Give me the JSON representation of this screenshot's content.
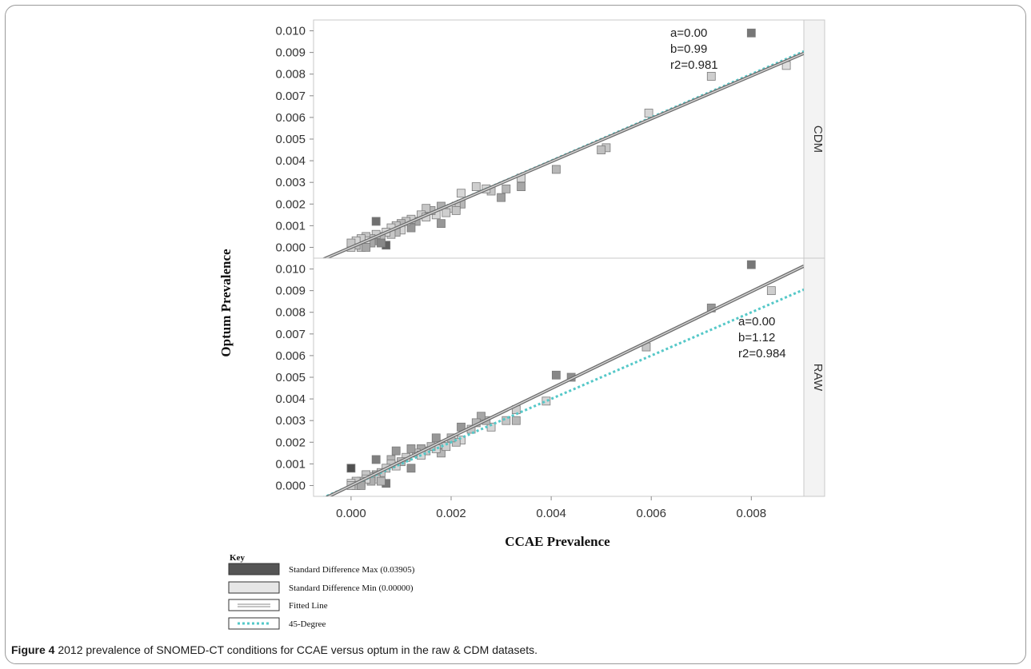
{
  "figure": {
    "caption_label": "Figure 4",
    "caption_text": "2012 prevalence of SNOMED-CT conditions for CCAE versus optum in the raw & CDM datasets."
  },
  "key": {
    "title": "Key",
    "items": [
      {
        "label": "Standard Difference Max (0.03905)",
        "symbol": "max-fill",
        "color": "#555555"
      },
      {
        "label": "Standard Difference Min (0.00000)",
        "symbol": "min-fill",
        "color": "#e6e6e6"
      },
      {
        "label": "Fitted Line",
        "symbol": "double-line",
        "color": "#888888"
      },
      {
        "label": "45-Degree",
        "symbol": "dotted-line",
        "color": "#55c8c8"
      }
    ]
  },
  "chart_data": {
    "type": "scatter",
    "xlabel": "CCAE Prevalence",
    "ylabel": "Optum Prevalence",
    "xlim": [
      -0.00075,
      0.00905
    ],
    "xticks": [
      "0.000",
      "0.002",
      "0.004",
      "0.006",
      "0.008"
    ],
    "xtick_values": [
      0,
      0.002,
      0.004,
      0.006,
      0.008
    ],
    "colors": {
      "fitted": "#6e6e6e",
      "degree45": "#55c8c8",
      "max": "#555555",
      "min": "#e6e6e6"
    },
    "panels": [
      {
        "name": "CDM",
        "ylim": [
          -0.0005,
          0.0105
        ],
        "yticks": [
          "0.000",
          "0.001",
          "0.002",
          "0.003",
          "0.004",
          "0.005",
          "0.006",
          "0.007",
          "0.008",
          "0.009",
          "0.010"
        ],
        "ytick_values": [
          0,
          0.001,
          0.002,
          0.003,
          0.004,
          0.005,
          0.006,
          0.007,
          0.008,
          0.009,
          0.01
        ],
        "annotation": [
          "a=0.00",
          "b=0.99",
          "r2=0.981"
        ],
        "fit": {
          "a": 0.0,
          "b": 0.99
        },
        "points": [
          [
            0.008,
            0.0099,
            0.7
          ],
          [
            0.0087,
            0.0084,
            0.05
          ],
          [
            0.0072,
            0.0079,
            0.15
          ],
          [
            0.00595,
            0.0062,
            0.1
          ],
          [
            0.0051,
            0.0046,
            0.2
          ],
          [
            0.005,
            0.0045,
            0.25
          ],
          [
            0.0041,
            0.0036,
            0.3
          ],
          [
            0.0034,
            0.0028,
            0.4
          ],
          [
            0.0034,
            0.0032,
            0.1
          ],
          [
            0.0031,
            0.0027,
            0.3
          ],
          [
            0.003,
            0.0023,
            0.45
          ],
          [
            0.0028,
            0.0026,
            0.2
          ],
          [
            0.0027,
            0.0027,
            0.1
          ],
          [
            0.0025,
            0.0028,
            0.15
          ],
          [
            0.0022,
            0.0025,
            0.1
          ],
          [
            0.0022,
            0.002,
            0.3
          ],
          [
            0.0021,
            0.0019,
            0.2
          ],
          [
            0.002,
            0.0018,
            0.1
          ],
          [
            0.0018,
            0.0011,
            0.5
          ],
          [
            0.0018,
            0.0019,
            0.35
          ],
          [
            0.0019,
            0.0016,
            0.15
          ],
          [
            0.0017,
            0.0015,
            0.1
          ],
          [
            0.0016,
            0.0017,
            0.3
          ],
          [
            0.0015,
            0.0018,
            0.2
          ],
          [
            0.0014,
            0.0015,
            0.15
          ],
          [
            0.0013,
            0.0012,
            0.4
          ],
          [
            0.0012,
            0.0009,
            0.5
          ],
          [
            0.0012,
            0.0013,
            0.15
          ],
          [
            0.0011,
            0.0012,
            0.2
          ],
          [
            0.001,
            0.0011,
            0.3
          ],
          [
            0.001,
            0.0008,
            0.1
          ],
          [
            0.0009,
            0.001,
            0.2
          ],
          [
            0.0009,
            0.0007,
            0.3
          ],
          [
            0.0008,
            0.0009,
            0.1
          ],
          [
            0.0008,
            0.0006,
            0.2
          ],
          [
            0.0007,
            0.0001,
            0.85
          ],
          [
            0.0007,
            0.0007,
            0.1
          ],
          [
            0.0006,
            0.0005,
            0.3
          ],
          [
            0.0005,
            0.0012,
            0.75
          ],
          [
            0.0005,
            0.0003,
            0.5
          ],
          [
            0.0005,
            0.0006,
            0.15
          ],
          [
            0.0004,
            0.0004,
            0.25
          ],
          [
            0.0004,
            0.0002,
            0.4
          ],
          [
            0.0003,
            0.0005,
            0.2
          ],
          [
            0.0003,
            0.0003,
            0.1
          ],
          [
            0.0002,
            0.0002,
            0.3
          ],
          [
            0.0002,
            0.0004,
            0.15
          ],
          [
            0.0002,
            0.0,
            0.2
          ],
          [
            0.0001,
            0.0001,
            0.25
          ],
          [
            0.0001,
            0.0003,
            0.1
          ],
          [
            0.0,
            0.0,
            0.15
          ],
          [
            0.0,
            0.0002,
            0.2
          ],
          [
            0.0006,
            0.0002,
            0.6
          ],
          [
            0.0003,
            0.0,
            0.4
          ],
          [
            0.0015,
            0.0014,
            0.1
          ],
          [
            0.0021,
            0.0017,
            0.2
          ]
        ]
      },
      {
        "name": "RAW",
        "ylim": [
          -0.0005,
          0.0105
        ],
        "yticks": [
          "0.000",
          "0.001",
          "0.002",
          "0.003",
          "0.004",
          "0.005",
          "0.006",
          "0.007",
          "0.008",
          "0.009",
          "0.010"
        ],
        "ytick_values": [
          0,
          0.001,
          0.002,
          0.003,
          0.004,
          0.005,
          0.006,
          0.007,
          0.008,
          0.009,
          0.01
        ],
        "annotation": [
          "a=0.00",
          "b=1.12",
          "r2=0.984"
        ],
        "fit": {
          "a": 0.0,
          "b": 1.12
        },
        "points": [
          [
            0.008,
            0.0102,
            0.7
          ],
          [
            0.0084,
            0.009,
            0.15
          ],
          [
            0.0072,
            0.0082,
            0.5
          ],
          [
            0.0059,
            0.0064,
            0.2
          ],
          [
            0.0044,
            0.005,
            0.55
          ],
          [
            0.0041,
            0.0051,
            0.6
          ],
          [
            0.0039,
            0.0039,
            0.1
          ],
          [
            0.0033,
            0.0035,
            0.15
          ],
          [
            0.0033,
            0.003,
            0.3
          ],
          [
            0.0031,
            0.003,
            0.2
          ],
          [
            0.0028,
            0.0027,
            0.1
          ],
          [
            0.0027,
            0.003,
            0.3
          ],
          [
            0.0026,
            0.0032,
            0.4
          ],
          [
            0.0025,
            0.0029,
            0.3
          ],
          [
            0.0024,
            0.0026,
            0.2
          ],
          [
            0.0022,
            0.0027,
            0.5
          ],
          [
            0.0022,
            0.0021,
            0.1
          ],
          [
            0.0021,
            0.002,
            0.2
          ],
          [
            0.002,
            0.0022,
            0.3
          ],
          [
            0.0018,
            0.0015,
            0.3
          ],
          [
            0.0018,
            0.0019,
            0.2
          ],
          [
            0.0017,
            0.0022,
            0.5
          ],
          [
            0.0017,
            0.0017,
            0.1
          ],
          [
            0.0016,
            0.0018,
            0.25
          ],
          [
            0.0015,
            0.0016,
            0.2
          ],
          [
            0.0014,
            0.0017,
            0.4
          ],
          [
            0.0013,
            0.0015,
            0.2
          ],
          [
            0.0012,
            0.0017,
            0.45
          ],
          [
            0.0012,
            0.0008,
            0.55
          ],
          [
            0.0011,
            0.0013,
            0.15
          ],
          [
            0.001,
            0.0011,
            0.3
          ],
          [
            0.0009,
            0.0016,
            0.5
          ],
          [
            0.0009,
            0.0009,
            0.1
          ],
          [
            0.0008,
            0.0012,
            0.3
          ],
          [
            0.0008,
            0.001,
            0.2
          ],
          [
            0.0007,
            0.0001,
            0.7
          ],
          [
            0.0007,
            0.0008,
            0.15
          ],
          [
            0.0006,
            0.0006,
            0.2
          ],
          [
            0.0005,
            0.0012,
            0.65
          ],
          [
            0.0005,
            0.0005,
            0.4
          ],
          [
            0.0005,
            0.0003,
            0.15
          ],
          [
            0.0004,
            0.0004,
            0.25
          ],
          [
            0.0004,
            0.0002,
            0.35
          ],
          [
            0.0003,
            0.0005,
            0.2
          ],
          [
            0.0003,
            0.0003,
            0.1
          ],
          [
            0.0002,
            0.0002,
            0.3
          ],
          [
            0.0002,
            0.0001,
            0.15
          ],
          [
            0.0001,
            0.0002,
            0.2
          ],
          [
            0.0001,
            0.0,
            0.25
          ],
          [
            0.0,
            0.0001,
            0.1
          ],
          [
            0.0,
            0.0008,
            0.95
          ],
          [
            0.0,
            0.0,
            0.2
          ],
          [
            0.0002,
            0.0,
            0.4
          ],
          [
            0.0006,
            0.0002,
            0.3
          ],
          [
            0.0014,
            0.0014,
            0.1
          ],
          [
            0.0019,
            0.0018,
            0.15
          ]
        ]
      }
    ]
  }
}
